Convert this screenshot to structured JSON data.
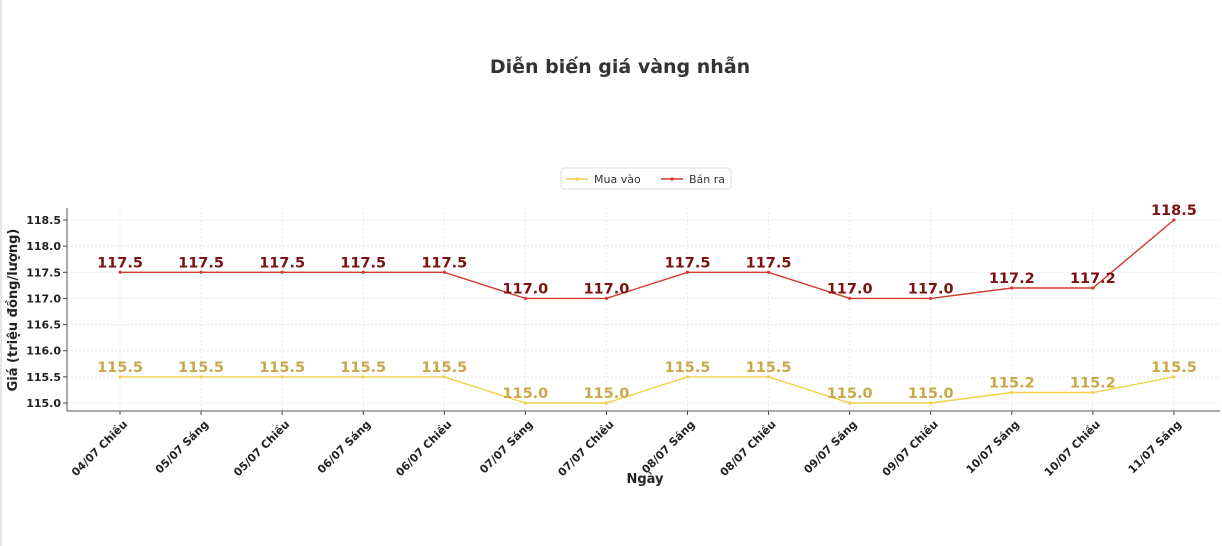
{
  "chart_data": {
    "type": "line",
    "title": "Diễn biến giá vàng nhẫn",
    "xlabel": "Ngày",
    "ylabel": "Giá (triệu đồng/lượng)",
    "categories": [
      "04/07 Chiều",
      "05/07 Sáng",
      "05/07 Chiều",
      "06/07 Sáng",
      "06/07 Chiều",
      "07/07 Sáng",
      "07/07 Chiều",
      "08/07 Sáng",
      "08/07 Chiều",
      "09/07 Sáng",
      "09/07 Chiều",
      "10/07 Sáng",
      "10/07 Chiều",
      "11/07 Sáng"
    ],
    "series": [
      {
        "name": "Mua vào",
        "color": "#f2d04a",
        "label_color": "#c9a84a",
        "values": [
          115.5,
          115.5,
          115.5,
          115.5,
          115.5,
          115.0,
          115.0,
          115.5,
          115.5,
          115.0,
          115.0,
          115.2,
          115.2,
          115.5
        ]
      },
      {
        "name": "Bán ra",
        "color": "#d23a32",
        "label_color": "#7d1212",
        "values": [
          117.5,
          117.5,
          117.5,
          117.5,
          117.5,
          117.0,
          117.0,
          117.5,
          117.5,
          117.0,
          117.0,
          117.2,
          117.2,
          118.5
        ]
      }
    ],
    "yticks": [
      "115.0",
      "115.5",
      "116.0",
      "116.5",
      "117.0",
      "117.5",
      "118.0",
      "118.5"
    ],
    "ylim": [
      114.9,
      118.7
    ],
    "grid": true,
    "legend_position": "top-center"
  }
}
